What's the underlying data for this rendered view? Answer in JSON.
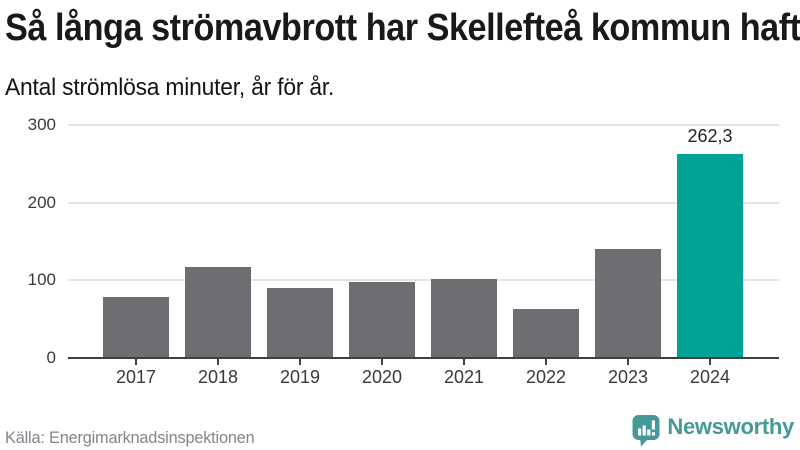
{
  "header": {
    "title": "Så långa strömavbrott har Skellefteå kommun haft",
    "subtitle": "Antal strömlösa minuter, år för år."
  },
  "chart_data": {
    "type": "bar",
    "title": "Så långa strömavbrott har Skellefteå kommun haft",
    "subtitle": "Antal strömlösa minuter, år för år.",
    "categories": [
      "2017",
      "2018",
      "2019",
      "2020",
      "2021",
      "2022",
      "2023",
      "2024"
    ],
    "values": [
      78,
      117,
      90,
      98,
      102,
      63,
      140,
      262.3
    ],
    "highlight_index": 7,
    "highlight_value_label": "262,3",
    "yticks": [
      0,
      100,
      200,
      300
    ],
    "ylim": [
      0,
      300
    ],
    "grid": true,
    "legend": "none",
    "xlabel": "",
    "ylabel": "",
    "bar_color": "#6d6d72",
    "highlight_color": "#00a398"
  },
  "footer": {
    "source": "Källa: Energimarknadsinspektionen",
    "brand": "Newsworthy"
  },
  "colors": {
    "accent_teal": "#00a398",
    "bar_gray": "#6d6d72",
    "logo_teal": "#459a98",
    "grid_gray": "#e3e3e3",
    "axis_dark": "#3f3f3f"
  }
}
